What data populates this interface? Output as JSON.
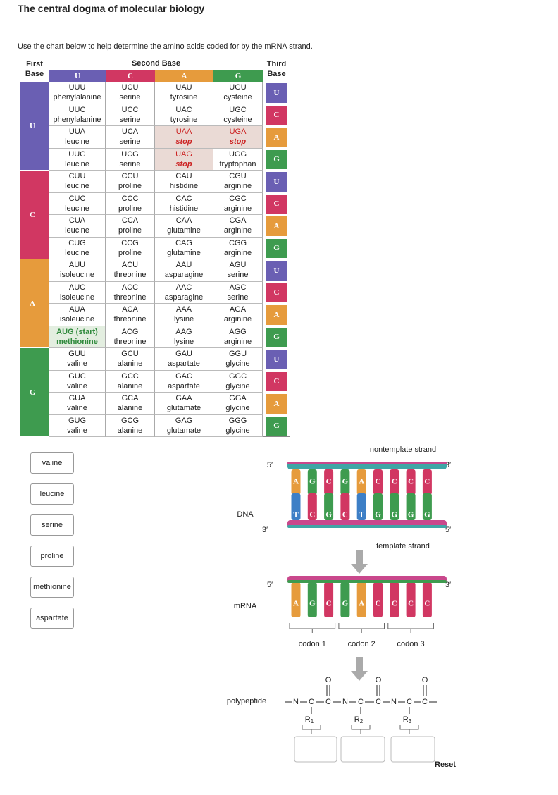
{
  "title": "The central dogma of molecular biology",
  "instruction": "Use the chart below to help determine the amino acids coded for by the mRNA strand.",
  "table": {
    "first_base_label": "First Base",
    "second_base_label": "Second Base",
    "third_base_label": "Third Base",
    "colors": {
      "U": "#6a5fb3",
      "C": "#d13762",
      "A": "#e69b3c",
      "G": "#3e9b4f"
    },
    "second_bases": [
      "U",
      "C",
      "A",
      "G"
    ],
    "groups": [
      {
        "base": "U",
        "rows": [
          {
            "third": "U",
            "cells": [
              {
                "codon": "UUU",
                "amino": "phenylalanine"
              },
              {
                "codon": "UCU",
                "amino": "serine"
              },
              {
                "codon": "UAU",
                "amino": "tyrosine"
              },
              {
                "codon": "UGU",
                "amino": "cysteine"
              }
            ]
          },
          {
            "third": "C",
            "cells": [
              {
                "codon": "UUC",
                "amino": "phenylalanine"
              },
              {
                "codon": "UCC",
                "amino": "serine"
              },
              {
                "codon": "UAC",
                "amino": "tyrosine"
              },
              {
                "codon": "UGC",
                "amino": "cysteine"
              }
            ]
          },
          {
            "third": "A",
            "cells": [
              {
                "codon": "UUA",
                "amino": "leucine"
              },
              {
                "codon": "UCA",
                "amino": "serine"
              },
              {
                "codon": "UAA",
                "amino": "stop",
                "kind": "stop"
              },
              {
                "codon": "UGA",
                "amino": "stop",
                "kind": "stop"
              }
            ]
          },
          {
            "third": "G",
            "cells": [
              {
                "codon": "UUG",
                "amino": "leucine"
              },
              {
                "codon": "UCG",
                "amino": "serine"
              },
              {
                "codon": "UAG",
                "amino": "stop",
                "kind": "stop"
              },
              {
                "codon": "UGG",
                "amino": "tryptophan"
              }
            ]
          }
        ]
      },
      {
        "base": "C",
        "rows": [
          {
            "third": "U",
            "cells": [
              {
                "codon": "CUU",
                "amino": "leucine"
              },
              {
                "codon": "CCU",
                "amino": "proline"
              },
              {
                "codon": "CAU",
                "amino": "histidine"
              },
              {
                "codon": "CGU",
                "amino": "arginine"
              }
            ]
          },
          {
            "third": "C",
            "cells": [
              {
                "codon": "CUC",
                "amino": "leucine"
              },
              {
                "codon": "CCC",
                "amino": "proline"
              },
              {
                "codon": "CAC",
                "amino": "histidine"
              },
              {
                "codon": "CGC",
                "amino": "arginine"
              }
            ]
          },
          {
            "third": "A",
            "cells": [
              {
                "codon": "CUA",
                "amino": "leucine"
              },
              {
                "codon": "CCA",
                "amino": "proline"
              },
              {
                "codon": "CAA",
                "amino": "glutamine"
              },
              {
                "codon": "CGA",
                "amino": "arginine"
              }
            ]
          },
          {
            "third": "G",
            "cells": [
              {
                "codon": "CUG",
                "amino": "leucine"
              },
              {
                "codon": "CCG",
                "amino": "proline"
              },
              {
                "codon": "CAG",
                "amino": "glutamine"
              },
              {
                "codon": "CGG",
                "amino": "arginine"
              }
            ]
          }
        ]
      },
      {
        "base": "A",
        "rows": [
          {
            "third": "U",
            "cells": [
              {
                "codon": "AUU",
                "amino": "isoleucine"
              },
              {
                "codon": "ACU",
                "amino": "threonine"
              },
              {
                "codon": "AAU",
                "amino": "asparagine"
              },
              {
                "codon": "AGU",
                "amino": "serine"
              }
            ]
          },
          {
            "third": "C",
            "cells": [
              {
                "codon": "AUC",
                "amino": "isoleucine"
              },
              {
                "codon": "ACC",
                "amino": "threonine"
              },
              {
                "codon": "AAC",
                "amino": "asparagine"
              },
              {
                "codon": "AGC",
                "amino": "serine"
              }
            ]
          },
          {
            "third": "A",
            "cells": [
              {
                "codon": "AUA",
                "amino": "isoleucine"
              },
              {
                "codon": "ACA",
                "amino": "threonine"
              },
              {
                "codon": "AAA",
                "amino": "lysine"
              },
              {
                "codon": "AGA",
                "amino": "arginine"
              }
            ]
          },
          {
            "third": "G",
            "cells": [
              {
                "codon": "AUG (start)",
                "amino": "methionine",
                "kind": "start"
              },
              {
                "codon": "ACG",
                "amino": "threonine"
              },
              {
                "codon": "AAG",
                "amino": "lysine"
              },
              {
                "codon": "AGG",
                "amino": "arginine"
              }
            ]
          }
        ]
      },
      {
        "base": "G",
        "rows": [
          {
            "third": "U",
            "cells": [
              {
                "codon": "GUU",
                "amino": "valine"
              },
              {
                "codon": "GCU",
                "amino": "alanine"
              },
              {
                "codon": "GAU",
                "amino": "aspartate"
              },
              {
                "codon": "GGU",
                "amino": "glycine"
              }
            ]
          },
          {
            "third": "C",
            "cells": [
              {
                "codon": "GUC",
                "amino": "valine"
              },
              {
                "codon": "GCC",
                "amino": "alanine"
              },
              {
                "codon": "GAC",
                "amino": "aspartate"
              },
              {
                "codon": "GGC",
                "amino": "glycine"
              }
            ]
          },
          {
            "third": "A",
            "cells": [
              {
                "codon": "GUA",
                "amino": "valine"
              },
              {
                "codon": "GCA",
                "amino": "alanine"
              },
              {
                "codon": "GAA",
                "amino": "glutamate"
              },
              {
                "codon": "GGA",
                "amino": "glycine"
              }
            ]
          },
          {
            "third": "G",
            "cells": [
              {
                "codon": "GUG",
                "amino": "valine"
              },
              {
                "codon": "GCG",
                "amino": "alanine"
              },
              {
                "codon": "GAG",
                "amino": "glutamate"
              },
              {
                "codon": "GGG",
                "amino": "glycine"
              }
            ]
          }
        ]
      }
    ]
  },
  "choices": [
    "valine",
    "leucine",
    "serine",
    "proline",
    "methionine",
    "aspartate"
  ],
  "diagram": {
    "base_colors": {
      "A": "#e69b3c",
      "G": "#3e9b4f",
      "C": "#d13762",
      "T": "#3d7fc6",
      "U": "#6a5fb3"
    },
    "nontemplate_label": "nontemplate strand",
    "template_label": "template strand",
    "dna_label": "DNA",
    "mrna_label": "mRNA",
    "polypeptide_label": "polypeptide",
    "dna_top_left": "5′",
    "dna_top_right": "3′",
    "dna_bottom_left": "3′",
    "dna_bottom_right": "5′",
    "mrna_left": "5′",
    "mrna_right": "3′",
    "nontemplate": [
      "A",
      "G",
      "C",
      "G",
      "A",
      "C",
      "C",
      "C",
      "C"
    ],
    "template": [
      "T",
      "C",
      "G",
      "C",
      "T",
      "G",
      "G",
      "G",
      "G"
    ],
    "mrna": [
      "A",
      "G",
      "C",
      "G",
      "A",
      "C",
      "C",
      "C",
      "C"
    ],
    "codons": [
      "codon 1",
      "codon 2",
      "codon 3"
    ]
  },
  "polypeptide": {
    "backbone": [
      "N",
      "C",
      "C",
      "N",
      "C",
      "C",
      "N",
      "C",
      "C"
    ],
    "carbonyl_oxygens": [
      "O",
      "O",
      "O"
    ],
    "r_groups": [
      {
        "letter": "R",
        "sub": "1"
      },
      {
        "letter": "R",
        "sub": "2"
      },
      {
        "letter": "R",
        "sub": "3"
      }
    ]
  },
  "reset": "Reset"
}
